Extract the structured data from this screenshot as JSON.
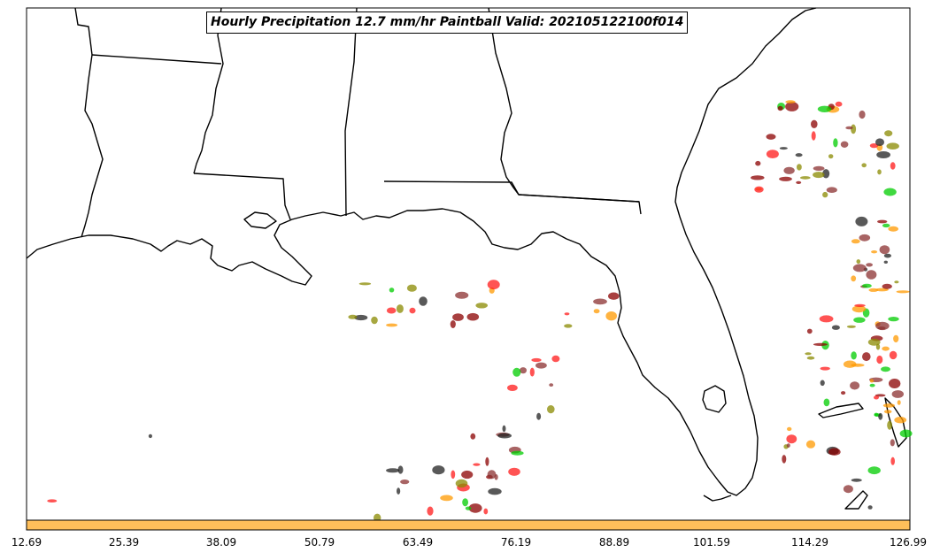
{
  "title": "Hourly Precipitation 12.7 mm/hr Paintball Valid: 202105122100f014",
  "colorbar": {
    "color": "#ffbf5a",
    "ticks": [
      "12.69",
      "25.39",
      "38.09",
      "50.79",
      "63.49",
      "76.19",
      "88.89",
      "101.59",
      "114.29",
      "126.99"
    ]
  },
  "palette": {
    "darkred": "#8b0000",
    "red": "#ff1a1a",
    "orange": "#ff9900",
    "olive": "#8a8a00",
    "green": "#00cc00",
    "black": "#222222",
    "brown": "#8b3030"
  }
}
